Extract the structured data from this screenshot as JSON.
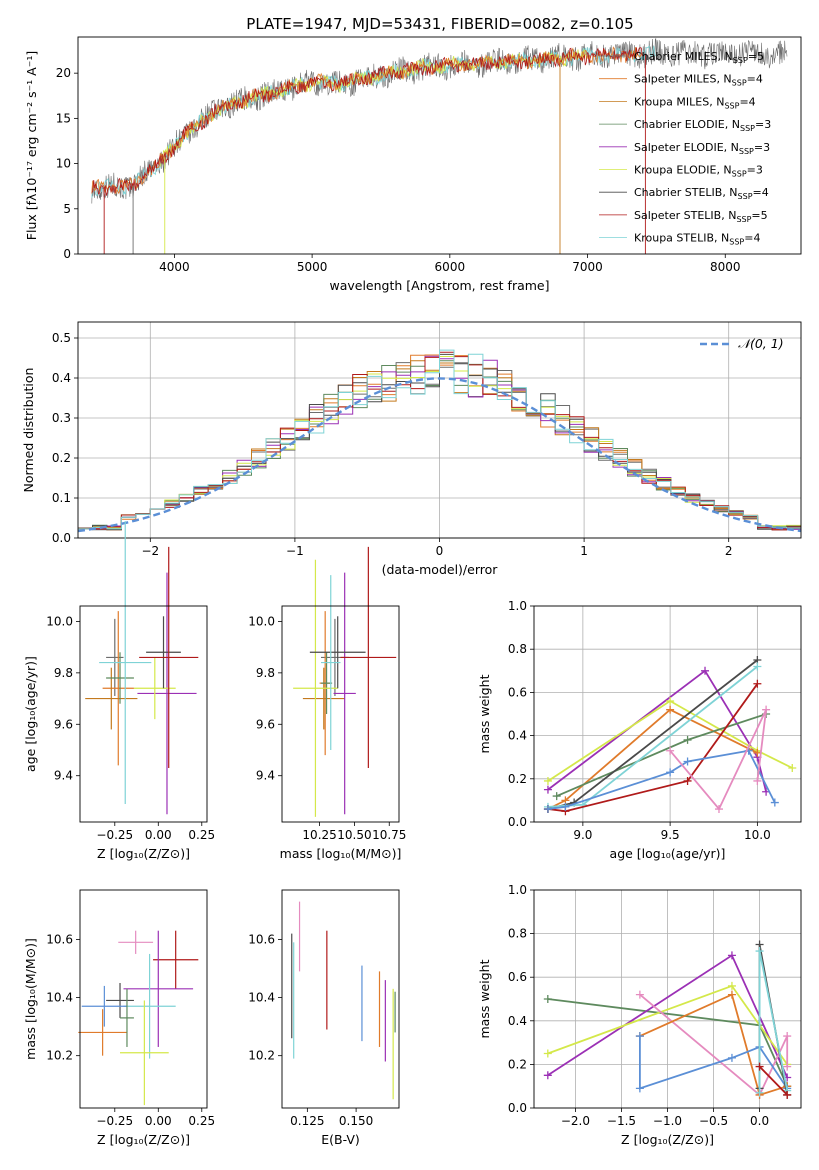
{
  "title": "PLATE=1947, MJD=53431, FIBERID=0082, z=0.105",
  "colors": {
    "Chabrier MILES": "#6d6d6d",
    "Salpeter MILES": "#e07b2b",
    "Kroupa MILES": "#c47a1e",
    "Chabrier ELODIE": "#5e8a5e",
    "Salpeter ELODIE": "#9b30b5",
    "Kroupa ELODIE": "#d4e84a",
    "Chabrier STELIB": "#4a4a4a",
    "Salpeter STELIB": "#b01a1a",
    "Kroupa STELIB": "#7fd3d6",
    "normal": "#5b8fd6",
    "pink": "#e58bbf",
    "blue": "#5b8fd6",
    "darkgreen": "#4f7a5f"
  },
  "chart_data": [
    {
      "type": "line",
      "title": "PLATE=1947, MJD=53431, FIBERID=0082, z=0.105",
      "xlabel": "wavelength [Angstrom, rest frame]",
      "ylabel": "Flux [fλ10⁻¹⁷ erg cm⁻² s⁻¹ A⁻¹]",
      "xlim": [
        3300,
        8550
      ],
      "ylim": [
        0,
        24
      ],
      "xticks": [
        "4000",
        "5000",
        "6000",
        "7000",
        "8000"
      ],
      "yticks": [
        "0",
        "5",
        "10",
        "15",
        "20"
      ],
      "legend_position": "right",
      "legend": [
        {
          "name": "Chabrier MILES",
          "nssp": "5"
        },
        {
          "name": "Salpeter MILES",
          "nssp": "4"
        },
        {
          "name": "Kroupa MILES",
          "nssp": "4"
        },
        {
          "name": "Chabrier ELODIE",
          "nssp": "3"
        },
        {
          "name": "Salpeter ELODIE",
          "nssp": "3"
        },
        {
          "name": "Kroupa ELODIE",
          "nssp": "3"
        },
        {
          "name": "Chabrier STELIB",
          "nssp": "4"
        },
        {
          "name": "Salpeter STELIB",
          "nssp": "5"
        },
        {
          "name": "Kroupa STELIB",
          "nssp": "4"
        }
      ],
      "continuum": {
        "x": [
          3400,
          3700,
          3900,
          4100,
          4300,
          4500,
          4800,
          5000,
          5200,
          5500,
          5800,
          6000,
          6300,
          6600,
          6900,
          7200,
          7500,
          7800,
          8100,
          8400
        ],
        "y": [
          7.2,
          7.6,
          10.2,
          13.5,
          15.8,
          17.0,
          18.2,
          19.0,
          18.8,
          19.8,
          20.6,
          20.9,
          21.2,
          21.4,
          21.8,
          22.0,
          22.2,
          22.1,
          22.3,
          22.2
        ]
      }
    },
    {
      "type": "area",
      "xlabel": "(data-model)/error",
      "ylabel": "Normed distribution",
      "xlim": [
        -2.5,
        2.5
      ],
      "ylim": [
        0,
        0.54
      ],
      "xticks": [
        "−2",
        "−1",
        "0",
        "1",
        "2"
      ],
      "yticks": [
        "0.0",
        "0.1",
        "0.2",
        "0.3",
        "0.4",
        "0.5"
      ],
      "grid": true,
      "legend_position": "top-right",
      "legend_label": "𝒩(0, 1)",
      "bin_width": 0.1,
      "n_bins": 50
    },
    {
      "type": "scatter",
      "xlabel": "Z [log₁₀(Z/Z⊙)]",
      "ylabel": "age  [log₁₀(age/yr)]",
      "xlim": [
        -0.45,
        0.28
      ],
      "ylim": [
        9.22,
        10.06
      ],
      "xticks": [
        "−0.25",
        "0.00",
        "0.25"
      ],
      "yticks": [
        "9.4",
        "9.6",
        "9.8",
        "10.0"
      ],
      "errorbars": [
        {
          "model": "Chabrier MILES",
          "x": -0.25,
          "xerr": 0.05,
          "y": 9.86,
          "yerr": 0.15
        },
        {
          "model": "Salpeter MILES",
          "x": -0.23,
          "xerr": 0.09,
          "y": 9.74,
          "yerr": 0.3
        },
        {
          "model": "Kroupa MILES",
          "x": -0.27,
          "xerr": 0.15,
          "y": 9.7,
          "yerr": 0.12
        },
        {
          "model": "Chabrier ELODIE",
          "x": -0.22,
          "xerr": 0.08,
          "y": 9.78,
          "yerr": 0.1
        },
        {
          "model": "Salpeter ELODIE",
          "x": 0.05,
          "xerr": 0.17,
          "y": 9.72,
          "yerr": 0.47
        },
        {
          "model": "Kroupa ELODIE",
          "x": -0.02,
          "xerr": 0.12,
          "y": 9.74,
          "yerr": 0.12
        },
        {
          "model": "Chabrier STELIB",
          "x": 0.03,
          "xerr": 0.1,
          "y": 9.88,
          "yerr": 0.14
        },
        {
          "model": "Salpeter STELIB",
          "x": 0.06,
          "xerr": 0.17,
          "y": 9.86,
          "yerr": 0.43
        },
        {
          "model": "Kroupa STELIB",
          "x": -0.19,
          "xerr": 0.15,
          "y": 9.84,
          "yerr": 0.55
        }
      ]
    },
    {
      "type": "scatter",
      "xlabel": "mass [log₁₀(M/M⊙)]",
      "ylabel": "",
      "xlim": [
        9.98,
        10.82
      ],
      "ylim": [
        9.22,
        10.06
      ],
      "xticks": [
        "10.25",
        "10.50",
        "10.75"
      ],
      "yticks": [
        "9.4",
        "9.6",
        "9.8",
        "10.0"
      ],
      "errorbars": [
        {
          "model": "Chabrier MILES",
          "x": 10.36,
          "xerr": 0.1,
          "y": 9.86,
          "yerr": 0.15
        },
        {
          "model": "Salpeter MILES",
          "x": 10.29,
          "xerr": 0.04,
          "y": 9.76,
          "yerr": 0.28
        },
        {
          "model": "Kroupa MILES",
          "x": 10.28,
          "xerr": 0.15,
          "y": 9.7,
          "yerr": 0.12
        },
        {
          "model": "Chabrier ELODIE",
          "x": 10.3,
          "xerr": 0.04,
          "y": 9.76,
          "yerr": 0.12
        },
        {
          "model": "Salpeter ELODIE",
          "x": 10.43,
          "xerr": 0.08,
          "y": 9.72,
          "yerr": 0.47
        },
        {
          "model": "Kroupa ELODIE",
          "x": 10.22,
          "xerr": 0.16,
          "y": 9.74,
          "yerr": 0.5
        },
        {
          "model": "Chabrier STELIB",
          "x": 10.38,
          "xerr": 0.2,
          "y": 9.88,
          "yerr": 0.14
        },
        {
          "model": "Salpeter STELIB",
          "x": 10.6,
          "xerr": 0.2,
          "y": 9.86,
          "yerr": 0.43
        },
        {
          "model": "Kroupa STELIB",
          "x": 10.33,
          "xerr": 0.07,
          "y": 9.84,
          "yerr": 0.34
        }
      ]
    },
    {
      "type": "line",
      "xlabel": "age  [log₁₀(age/yr)]",
      "ylabel": "mass weight",
      "xlim": [
        8.72,
        10.25
      ],
      "ylim": [
        0,
        1.0
      ],
      "xticks": [
        "9.0",
        "9.5",
        "10.0"
      ],
      "yticks": [
        "0.0",
        "0.2",
        "0.4",
        "0.6",
        "0.8",
        "1.0"
      ],
      "grid": true,
      "series": [
        {
          "model": "Salpeter ELODIE",
          "x": [
            8.8,
            9.7,
            10.0,
            10.05
          ],
          "y": [
            0.15,
            0.7,
            0.3,
            0.14
          ]
        },
        {
          "model": "Kroupa ELODIE",
          "x": [
            8.8,
            9.5,
            10.0,
            10.2
          ],
          "y": [
            0.19,
            0.56,
            0.33,
            0.25
          ]
        },
        {
          "model": "Salpeter MILES",
          "x": [
            8.8,
            8.9,
            9.5,
            10.0
          ],
          "y": [
            0.06,
            0.1,
            0.52,
            0.32
          ]
        },
        {
          "model": "Chabrier ELODIE",
          "x": [
            8.85,
            9.6,
            10.05
          ],
          "y": [
            0.12,
            0.38,
            0.5
          ]
        },
        {
          "model": "Chabrier STELIB",
          "x": [
            8.8,
            8.95,
            10.0
          ],
          "y": [
            0.06,
            0.09,
            0.75
          ]
        },
        {
          "model": "Kroupa STELIB",
          "x": [
            8.8,
            9.0,
            10.0
          ],
          "y": [
            0.07,
            0.08,
            0.72
          ]
        },
        {
          "model": "Salpeter STELIB",
          "x": [
            8.8,
            8.9,
            9.6,
            10.0
          ],
          "y": [
            0.06,
            0.05,
            0.19,
            0.64
          ]
        },
        {
          "model": "blue",
          "x": [
            8.8,
            8.9,
            9.5,
            9.6,
            9.95,
            10.1
          ],
          "y": [
            0.06,
            0.07,
            0.23,
            0.28,
            0.33,
            0.09
          ]
        },
        {
          "model": "pink",
          "x": [
            9.5,
            9.78,
            10.05,
            10.0
          ],
          "y": [
            0.33,
            0.06,
            0.52,
            0.19
          ]
        }
      ]
    },
    {
      "type": "scatter",
      "xlabel": "Z [log₁₀(Z/Z⊙)]",
      "ylabel": "mass [log₁₀(M/M⊙)]",
      "xlim": [
        -0.45,
        0.28
      ],
      "ylim": [
        10.02,
        10.77
      ],
      "xticks": [
        "−0.25",
        "0.00",
        "0.25"
      ],
      "yticks": [
        "10.2",
        "10.4",
        "10.6"
      ],
      "errorbars": [
        {
          "model": "pink",
          "x": -0.13,
          "xerr": 0.1,
          "y": 10.59,
          "yerr": 0.04
        },
        {
          "model": "Salpeter STELIB",
          "x": 0.1,
          "xerr": 0.13,
          "y": 10.53,
          "yerr": 0.1
        },
        {
          "model": "Salpeter ELODIE",
          "x": 0.0,
          "xerr": 0.2,
          "y": 10.43,
          "yerr": 0.2
        },
        {
          "model": "Chabrier STELIB",
          "x": -0.22,
          "xerr": 0.08,
          "y": 10.39,
          "yerr": 0.06
        },
        {
          "model": "Kroupa STELIB",
          "x": -0.05,
          "xerr": 0.15,
          "y": 10.37,
          "yerr": 0.18
        },
        {
          "model": "blue",
          "x": -0.31,
          "xerr": 0.13,
          "y": 10.37,
          "yerr": 0.07
        },
        {
          "model": "Salpeter MILES",
          "x": -0.32,
          "xerr": 0.14,
          "y": 10.28,
          "yerr": 0.08
        },
        {
          "model": "Kroupa ELODIE",
          "x": -0.08,
          "xerr": 0.14,
          "y": 10.21,
          "yerr": 0.18
        },
        {
          "model": "Chabrier ELODIE",
          "x": -0.18,
          "xerr": 0.04,
          "y": 10.33,
          "yerr": 0.1
        }
      ]
    },
    {
      "type": "scatter",
      "xlabel": "E(B-V)",
      "ylabel": "",
      "xlim": [
        0.112,
        0.172
      ],
      "ylim": [
        10.02,
        10.77
      ],
      "xticks": [
        "0.125",
        "0.150"
      ],
      "yticks": [
        "10.2",
        "10.4",
        "10.6"
      ],
      "errorbars": [
        {
          "model": "Chabrier STELIB",
          "x": 0.117,
          "y": 10.44,
          "yerr": 0.18
        },
        {
          "model": "Kroupa STELIB",
          "x": 0.118,
          "y": 10.39,
          "yerr": 0.2
        },
        {
          "model": "pink",
          "x": 0.121,
          "y": 10.61,
          "yerr": 0.12
        },
        {
          "model": "Salpeter STELIB",
          "x": 0.135,
          "y": 10.46,
          "yerr": 0.17
        },
        {
          "model": "blue",
          "x": 0.153,
          "y": 10.38,
          "yerr": 0.13
        },
        {
          "model": "Salpeter MILES",
          "x": 0.162,
          "y": 10.36,
          "yerr": 0.13
        },
        {
          "model": "Salpeter ELODIE",
          "x": 0.165,
          "y": 10.32,
          "yerr": 0.14
        },
        {
          "model": "Kroupa ELODIE",
          "x": 0.169,
          "y": 10.24,
          "yerr": 0.19
        },
        {
          "model": "Chabrier ELODIE",
          "x": 0.17,
          "y": 10.35,
          "yerr": 0.07
        }
      ]
    },
    {
      "type": "line",
      "xlabel": "Z [log₁₀(Z/Z⊙)]",
      "ylabel": "mass weight",
      "xlim": [
        -2.45,
        0.45
      ],
      "ylim": [
        0,
        1.0
      ],
      "xticks": [
        "−2.0",
        "−1.5",
        "−1.0",
        "−0.5",
        "0.0"
      ],
      "yticks": [
        "0.0",
        "0.2",
        "0.4",
        "0.6",
        "0.8",
        "1.0"
      ],
      "grid": true,
      "series": [
        {
          "model": "Chabrier ELODIE",
          "x": [
            -2.3,
            0.0,
            0.3
          ],
          "y": [
            0.5,
            0.38,
            0.1
          ]
        },
        {
          "model": "Salpeter ELODIE",
          "x": [
            -2.3,
            -0.3,
            0.3
          ],
          "y": [
            0.15,
            0.7,
            0.14
          ]
        },
        {
          "model": "Kroupa ELODIE",
          "x": [
            -2.3,
            -0.3,
            0.3
          ],
          "y": [
            0.25,
            0.56,
            0.2
          ]
        },
        {
          "model": "pink",
          "x": [
            -1.3,
            0.0,
            0.3,
            0.3
          ],
          "y": [
            0.52,
            0.06,
            0.33,
            0.19
          ]
        },
        {
          "model": "Salpeter MILES",
          "x": [
            -1.3,
            -0.3,
            0.0,
            0.3
          ],
          "y": [
            0.33,
            0.52,
            0.06,
            0.1
          ]
        },
        {
          "model": "blue",
          "x": [
            -1.3,
            -1.3,
            -0.3,
            0.0,
            0.3
          ],
          "y": [
            0.33,
            0.09,
            0.23,
            0.28,
            0.09
          ]
        },
        {
          "model": "Chabrier STELIB",
          "x": [
            0.0,
            0.0,
            0.3
          ],
          "y": [
            0.09,
            0.75,
            0.06
          ]
        },
        {
          "model": "Kroupa STELIB",
          "x": [
            0.0,
            0.0,
            0.3
          ],
          "y": [
            0.07,
            0.72,
            0.08
          ]
        },
        {
          "model": "Salpeter STELIB",
          "x": [
            0.0,
            0.3
          ],
          "y": [
            0.19,
            0.06
          ]
        }
      ]
    }
  ]
}
